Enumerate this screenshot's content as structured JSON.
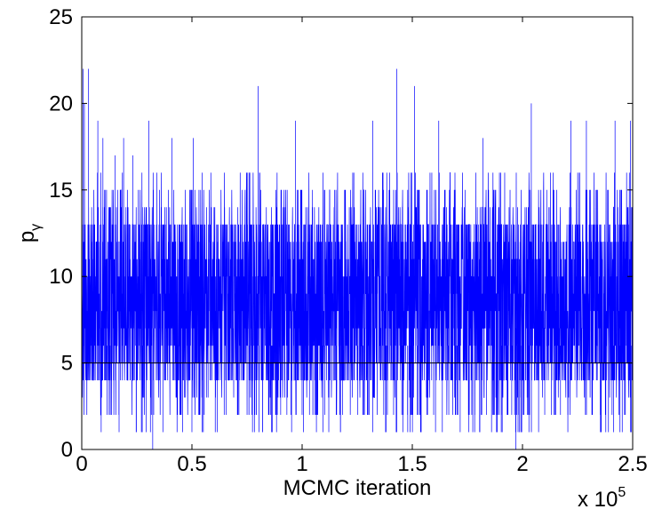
{
  "chart_data": {
    "type": "line",
    "title": "",
    "xlabel": "MCMC iteration",
    "ylabel": "p",
    "ylabel_subscript": "γ",
    "x_multiplier": {
      "base": "x 10",
      "exponent": "5"
    },
    "xlim": [
      0,
      2.5
    ],
    "ylim": [
      0,
      25
    ],
    "xticks": [
      0,
      0.5,
      1,
      1.5,
      2,
      2.5
    ],
    "xtick_labels": [
      "0",
      "0.5",
      "1",
      "1.5",
      "2",
      "2.5"
    ],
    "yticks": [
      0,
      5,
      10,
      15,
      20,
      25
    ],
    "ytick_labels": [
      "0",
      "5",
      "10",
      "15",
      "20",
      "25"
    ],
    "grid": false,
    "series": [
      {
        "color": "#0000ff",
        "description": "MCMC trace of model size, iterations 0 to 250000, values fluctuating mostly between 3 and 14",
        "typical_range": [
          4,
          13
        ],
        "max": 22,
        "min": 0,
        "x": [
          0.006,
          0.012,
          0.031,
          0.073,
          0.096,
          0.151,
          0.19,
          0.232,
          0.305,
          0.322,
          0.409,
          0.506,
          0.801,
          0.97,
          1.32,
          1.43,
          1.51,
          1.62,
          1.82,
          1.97,
          2.04,
          2.22,
          2.29,
          2.42,
          2.49
        ],
        "y": [
          22,
          20,
          22,
          19,
          18,
          17,
          18,
          17,
          19,
          0,
          18,
          18,
          21,
          19,
          19,
          22,
          21,
          19,
          18,
          0,
          20,
          19,
          19,
          19,
          19
        ]
      },
      {
        "color": "#000000",
        "description": "horizontal reference line",
        "y": 5
      }
    ]
  }
}
